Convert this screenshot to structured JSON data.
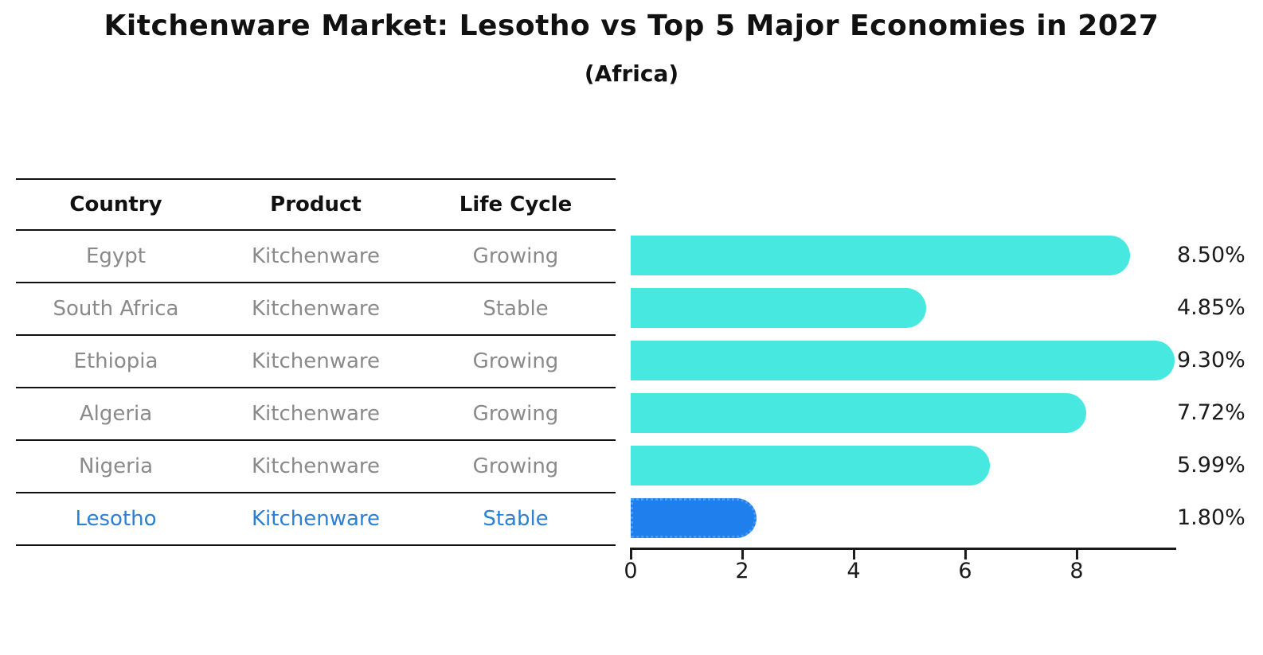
{
  "title": "Kitchenware Market: Lesotho vs Top 5 Major Economies in 2027",
  "subtitle": "(Africa)",
  "table": {
    "headers": [
      "Country",
      "Product",
      "Life Cycle"
    ]
  },
  "chart_data": {
    "type": "bar",
    "orientation": "horizontal",
    "title": "Kitchenware Market: Lesotho vs Top 5 Major Economies in 2027",
    "subtitle": "(Africa)",
    "xlabel": "",
    "ylabel": "",
    "xlim": [
      0,
      9.8
    ],
    "x_ticks": [
      0,
      2,
      4,
      6,
      8
    ],
    "grid": false,
    "legend_position": "none",
    "categories": [
      "Egypt",
      "South Africa",
      "Ethiopia",
      "Algeria",
      "Nigeria",
      "Lesotho"
    ],
    "values": [
      8.5,
      4.85,
      9.3,
      7.72,
      5.99,
      1.8
    ],
    "rows": [
      {
        "country": "Egypt",
        "product": "Kitchenware",
        "life_cycle": "Growing",
        "value": 8.5,
        "value_label": "8.50%",
        "highlight": false
      },
      {
        "country": "South Africa",
        "product": "Kitchenware",
        "life_cycle": "Stable",
        "value": 4.85,
        "value_label": "4.85%",
        "highlight": false
      },
      {
        "country": "Ethiopia",
        "product": "Kitchenware",
        "life_cycle": "Growing",
        "value": 9.3,
        "value_label": "9.30%",
        "highlight": false
      },
      {
        "country": "Algeria",
        "product": "Kitchenware",
        "life_cycle": "Growing",
        "value": 7.72,
        "value_label": "7.72%",
        "highlight": false
      },
      {
        "country": "Nigeria",
        "product": "Kitchenware",
        "life_cycle": "Growing",
        "value": 5.99,
        "value_label": "5.99%",
        "highlight": false
      },
      {
        "country": "Lesotho",
        "product": "Kitchenware",
        "life_cycle": "Stable",
        "value": 1.8,
        "value_label": "1.80%",
        "highlight": true
      }
    ]
  },
  "colors": {
    "bar_default": "#47e8e0",
    "bar_highlight": "#1f7fec",
    "bar_highlight_border": "#4d9bf0",
    "highlight_text": "#2b7fd4",
    "row_text": "#8a8a8a",
    "header_text": "#111111",
    "value_text": "#1a1a1a",
    "axis": "#1a1a1a",
    "background": "#ffffff"
  }
}
